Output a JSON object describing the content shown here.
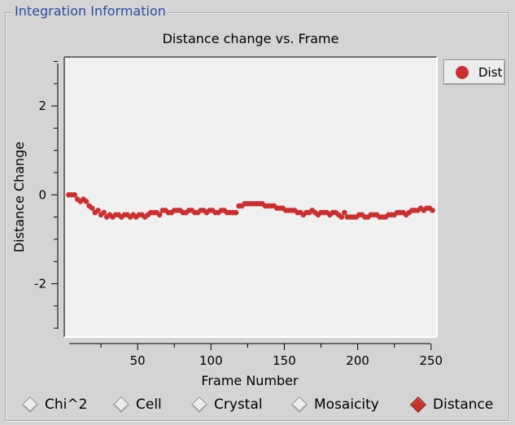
{
  "group_title": "Integration Information",
  "chart_data": {
    "type": "scatter",
    "title": "Distance change vs. Frame",
    "xlabel": "Frame Number",
    "ylabel": "Distance Change",
    "xlim": [
      0,
      254
    ],
    "ylim": [
      -3.2,
      3.1
    ],
    "x_ticks": [
      50,
      100,
      150,
      200,
      250
    ],
    "y_ticks": [
      -2,
      0,
      2
    ],
    "legend": "right",
    "series": [
      {
        "name": "Dist",
        "color": "#cc2f2f",
        "x": [
          3,
          5,
          7,
          9,
          11,
          13,
          15,
          17,
          19,
          21,
          23,
          25,
          27,
          29,
          31,
          33,
          35,
          37,
          39,
          41,
          43,
          45,
          47,
          49,
          51,
          53,
          55,
          57,
          59,
          61,
          63,
          65,
          67,
          69,
          71,
          73,
          75,
          77,
          79,
          81,
          83,
          85,
          87,
          89,
          91,
          93,
          95,
          97,
          99,
          101,
          103,
          105,
          107,
          109,
          111,
          113,
          115,
          117,
          119,
          121,
          123,
          125,
          127,
          129,
          131,
          133,
          135,
          137,
          139,
          141,
          143,
          145,
          147,
          149,
          151,
          153,
          155,
          157,
          159,
          161,
          163,
          165,
          167,
          169,
          171,
          173,
          175,
          177,
          179,
          181,
          183,
          185,
          187,
          189,
          191,
          193,
          195,
          197,
          199,
          201,
          203,
          205,
          207,
          209,
          211,
          213,
          215,
          217,
          219,
          221,
          223,
          225,
          227,
          229,
          231,
          233,
          235,
          237,
          239,
          241,
          243,
          245,
          247,
          249,
          251
        ],
        "y": [
          0,
          0,
          0,
          -0.1,
          -0.15,
          -0.1,
          -0.15,
          -0.25,
          -0.3,
          -0.4,
          -0.35,
          -0.45,
          -0.4,
          -0.5,
          -0.45,
          -0.5,
          -0.45,
          -0.45,
          -0.5,
          -0.45,
          -0.45,
          -0.5,
          -0.45,
          -0.5,
          -0.45,
          -0.45,
          -0.5,
          -0.45,
          -0.4,
          -0.4,
          -0.4,
          -0.45,
          -0.35,
          -0.35,
          -0.4,
          -0.4,
          -0.35,
          -0.35,
          -0.35,
          -0.4,
          -0.4,
          -0.35,
          -0.35,
          -0.4,
          -0.4,
          -0.35,
          -0.35,
          -0.4,
          -0.35,
          -0.35,
          -0.4,
          -0.4,
          -0.35,
          -0.35,
          -0.4,
          -0.4,
          -0.4,
          -0.4,
          -0.25,
          -0.25,
          -0.2,
          -0.2,
          -0.2,
          -0.2,
          -0.2,
          -0.2,
          -0.2,
          -0.25,
          -0.25,
          -0.25,
          -0.25,
          -0.3,
          -0.3,
          -0.3,
          -0.35,
          -0.35,
          -0.35,
          -0.35,
          -0.4,
          -0.4,
          -0.45,
          -0.4,
          -0.4,
          -0.35,
          -0.4,
          -0.45,
          -0.4,
          -0.4,
          -0.4,
          -0.45,
          -0.4,
          -0.4,
          -0.45,
          -0.5,
          -0.4,
          -0.5,
          -0.5,
          -0.5,
          -0.5,
          -0.45,
          -0.45,
          -0.5,
          -0.5,
          -0.45,
          -0.45,
          -0.45,
          -0.5,
          -0.5,
          -0.5,
          -0.45,
          -0.45,
          -0.45,
          -0.4,
          -0.4,
          -0.4,
          -0.45,
          -0.4,
          -0.35,
          -0.35,
          -0.35,
          -0.3,
          -0.35,
          -0.3,
          -0.3,
          -0.35
        ]
      }
    ]
  },
  "legend_label": "Dist",
  "radio_options": [
    {
      "label": "Chi^2",
      "selected": false
    },
    {
      "label": "Cell",
      "selected": false
    },
    {
      "label": "Crystal",
      "selected": false
    },
    {
      "label": "Mosaicity",
      "selected": false
    },
    {
      "label": "Distance",
      "selected": true
    }
  ]
}
